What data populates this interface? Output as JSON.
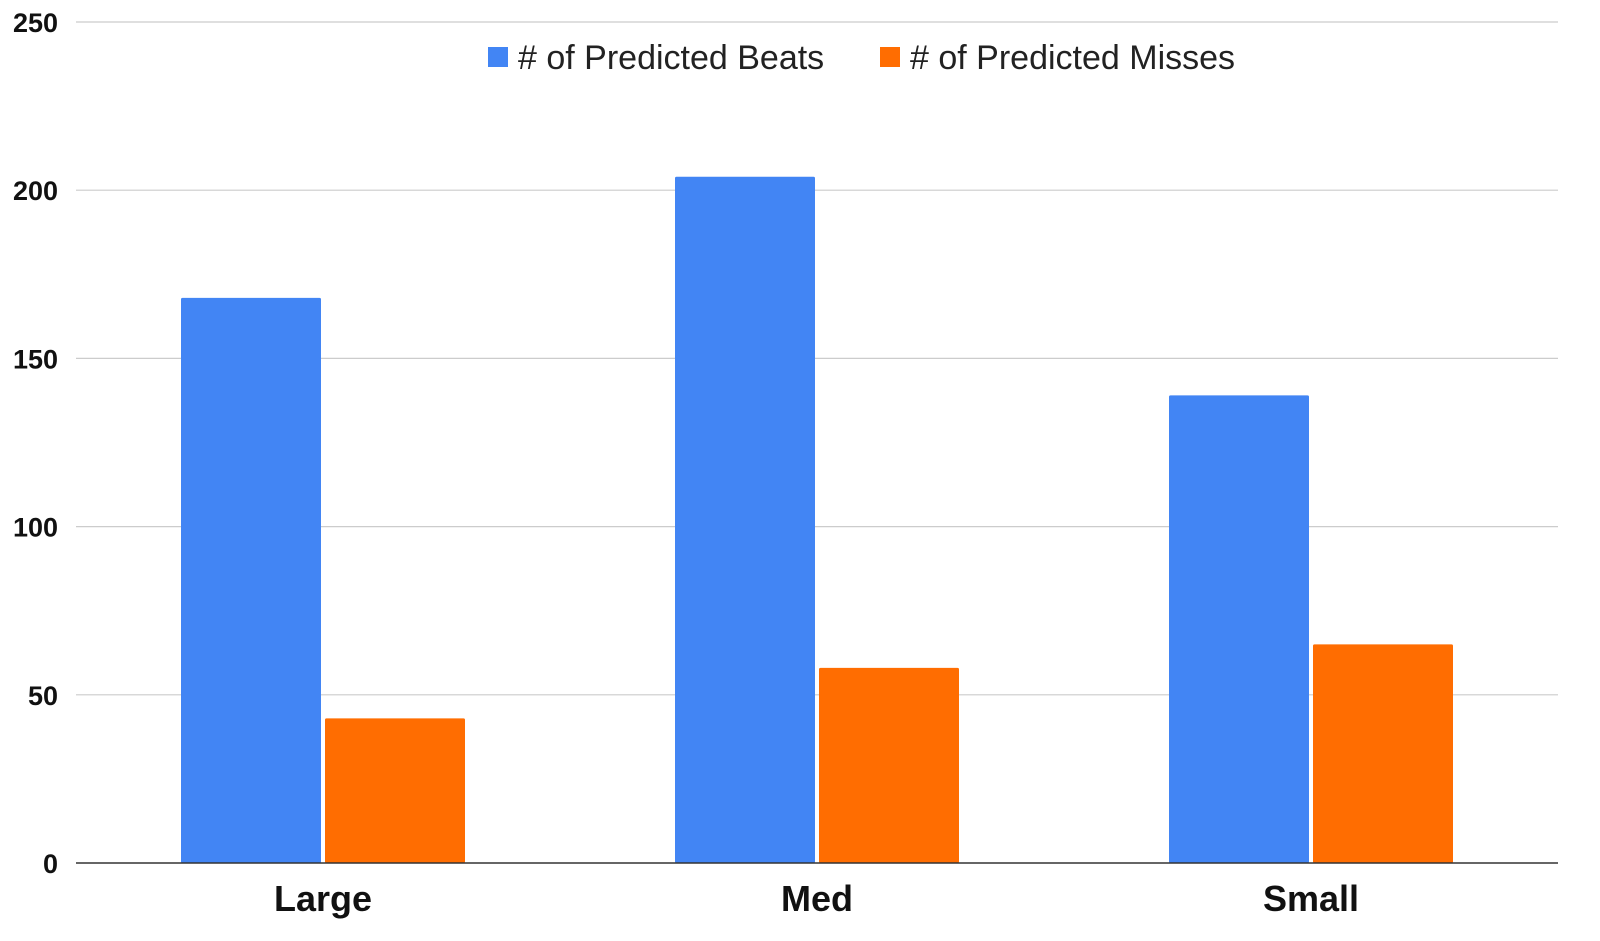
{
  "chart_data": {
    "type": "bar",
    "title": "",
    "xlabel": "",
    "ylabel": "",
    "categories": [
      "Large",
      "Med",
      "Small"
    ],
    "series": [
      {
        "name": "# of Predicted Beats",
        "color": "#4285F4",
        "values": [
          168,
          204,
          139
        ]
      },
      {
        "name": "# of Predicted Misses",
        "color": "#FF6D01",
        "values": [
          43,
          58,
          65
        ]
      }
    ],
    "ylim": [
      0,
      250
    ],
    "yticks": [
      0,
      50,
      100,
      150,
      200,
      250
    ],
    "grid": true,
    "legend_position": "top-center"
  }
}
